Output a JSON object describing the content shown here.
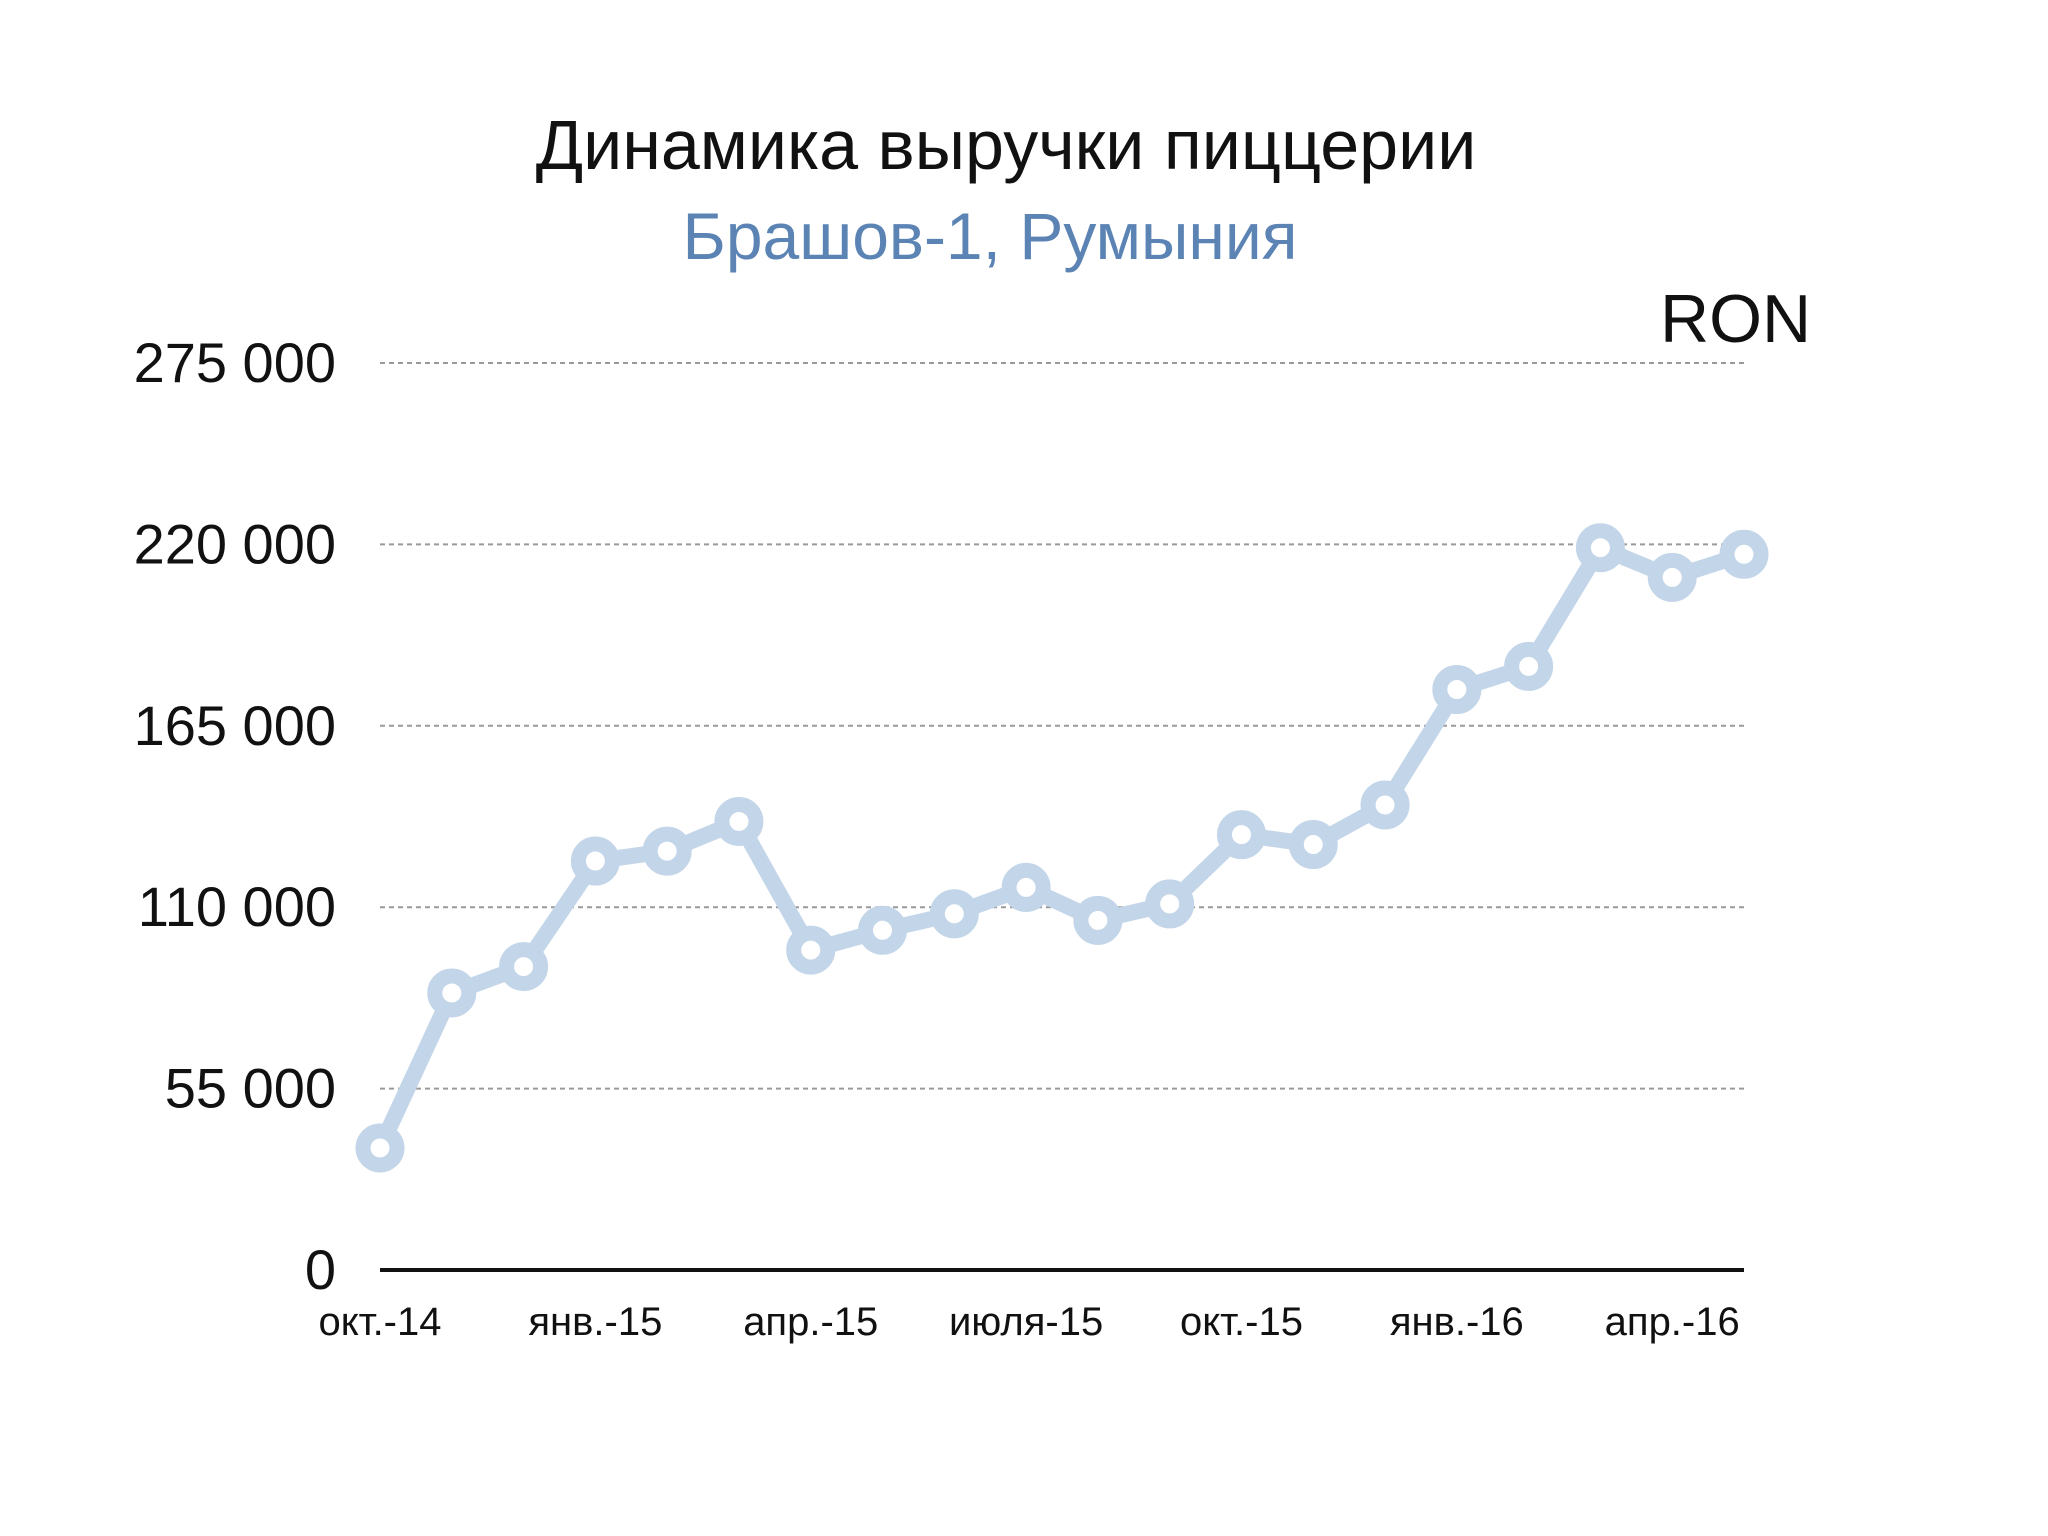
{
  "chart_data": {
    "type": "line",
    "title": "Динамика выручки пиццерии",
    "subtitle": "Брашов-1, Румыния",
    "unit_label": "RON",
    "ylim": [
      0,
      275000
    ],
    "y_ticks": [
      0,
      55000,
      110000,
      165000,
      220000,
      275000
    ],
    "y_tick_labels": [
      "0",
      "55 000",
      "110 000",
      "165 000",
      "220 000",
      "275 000"
    ],
    "x_tick_labels": [
      "окт.-14",
      "янв.-15",
      "апр.-15",
      "июля-15",
      "окт.-15",
      "янв.-16",
      "апр.-16"
    ],
    "x_tick_index": [
      0,
      3,
      6,
      9,
      12,
      15,
      18
    ],
    "grid": true,
    "series": [
      {
        "values": [
          37000,
          84000,
          92000,
          124000,
          127000,
          136000,
          97000,
          103000,
          108000,
          116000,
          106000,
          111000,
          132000,
          129000,
          141000,
          176000,
          183000,
          219000,
          210000,
          217000
        ]
      }
    ],
    "colors": {
      "line": "#c3d5e8",
      "title": "#111111",
      "subtitle": "#5b84b5",
      "axis": "#111111",
      "grid": "#9a9a9a"
    }
  }
}
